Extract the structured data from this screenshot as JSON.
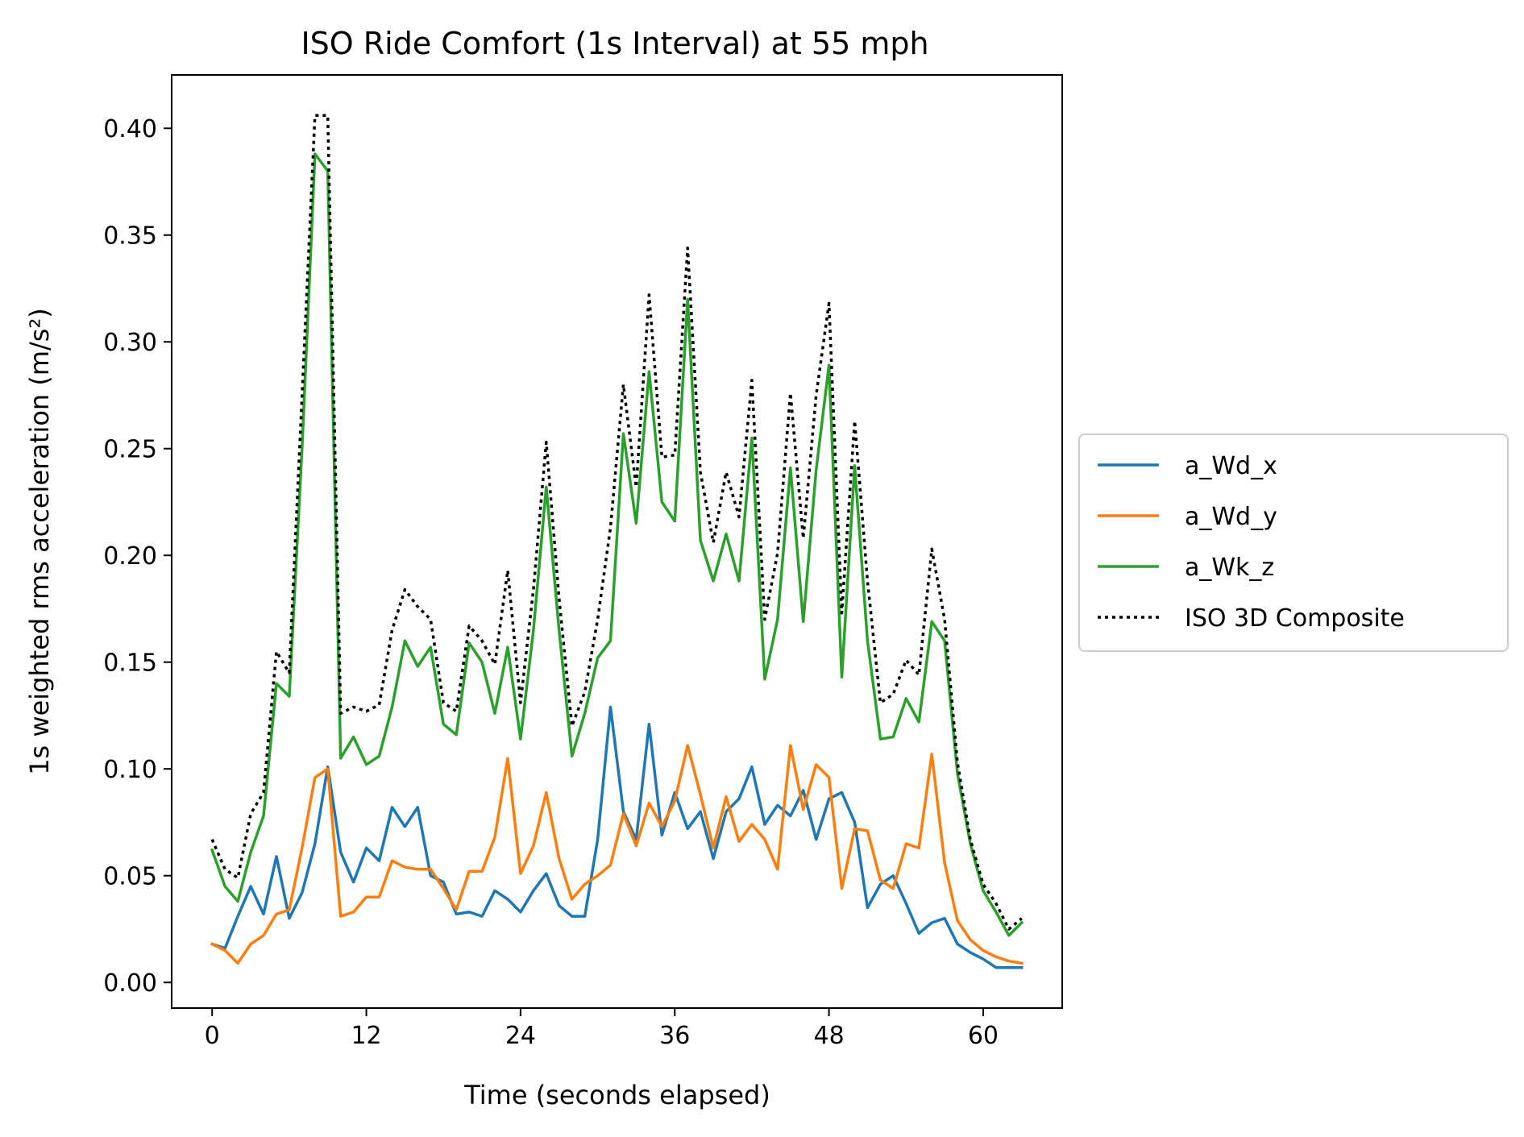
{
  "chart_data": {
    "type": "line",
    "title": "ISO Ride Comfort (1s Interval) at 55 mph",
    "xlabel": "Time (seconds elapsed)",
    "ylabel": "1s weighted rms acceleration (m/s²)",
    "xlim": [
      -3.15,
      66.15
    ],
    "ylim": [
      -0.012,
      0.425
    ],
    "xticks": [
      0,
      12,
      24,
      36,
      48,
      60
    ],
    "xtick_labels": [
      "0",
      "12",
      "24",
      "36",
      "48",
      "60"
    ],
    "yticks": [
      0.0,
      0.05,
      0.1,
      0.15,
      0.2,
      0.25,
      0.3,
      0.35,
      0.4
    ],
    "ytick_labels": [
      "0.00",
      "0.05",
      "0.10",
      "0.15",
      "0.20",
      "0.25",
      "0.30",
      "0.35",
      "0.40"
    ],
    "grid": false,
    "legend_placement": "right-center",
    "x": [
      0,
      1,
      2,
      3,
      4,
      5,
      6,
      7,
      8,
      9,
      10,
      11,
      12,
      13,
      14,
      15,
      16,
      17,
      18,
      19,
      20,
      21,
      22,
      23,
      24,
      25,
      26,
      27,
      28,
      29,
      30,
      31,
      32,
      33,
      34,
      35,
      36,
      37,
      38,
      39,
      40,
      41,
      42,
      43,
      44,
      45,
      46,
      47,
      48,
      49,
      50,
      51,
      52,
      53,
      54,
      55,
      56,
      57,
      58,
      59,
      60,
      61,
      62,
      63
    ],
    "series": [
      {
        "name": "a_Wd_x",
        "color": "#1f77b4",
        "style": "solid",
        "values": [
          0.018,
          0.016,
          0.031,
          0.045,
          0.032,
          0.059,
          0.03,
          0.042,
          0.065,
          0.101,
          0.061,
          0.047,
          0.063,
          0.057,
          0.082,
          0.073,
          0.082,
          0.05,
          0.047,
          0.032,
          0.033,
          0.031,
          0.043,
          0.039,
          0.033,
          0.043,
          0.051,
          0.036,
          0.031,
          0.031,
          0.067,
          0.129,
          0.08,
          0.067,
          0.121,
          0.069,
          0.089,
          0.072,
          0.08,
          0.058,
          0.08,
          0.086,
          0.101,
          0.074,
          0.083,
          0.078,
          0.09,
          0.067,
          0.086,
          0.089,
          0.075,
          0.035,
          0.046,
          0.05,
          0.037,
          0.023,
          0.028,
          0.03,
          0.018,
          0.014,
          0.011,
          0.007,
          0.007,
          0.007
        ]
      },
      {
        "name": "a_Wd_y",
        "color": "#ff7f0e",
        "style": "solid",
        "values": [
          0.018,
          0.015,
          0.009,
          0.018,
          0.022,
          0.032,
          0.034,
          0.063,
          0.096,
          0.1,
          0.031,
          0.033,
          0.04,
          0.04,
          0.057,
          0.054,
          0.053,
          0.053,
          0.044,
          0.034,
          0.052,
          0.052,
          0.068,
          0.105,
          0.051,
          0.064,
          0.089,
          0.058,
          0.039,
          0.046,
          0.05,
          0.055,
          0.079,
          0.064,
          0.084,
          0.073,
          0.085,
          0.111,
          0.088,
          0.063,
          0.087,
          0.066,
          0.074,
          0.067,
          0.053,
          0.111,
          0.081,
          0.102,
          0.096,
          0.044,
          0.072,
          0.071,
          0.048,
          0.044,
          0.065,
          0.063,
          0.107,
          0.056,
          0.029,
          0.02,
          0.015,
          0.012,
          0.01,
          0.009
        ]
      },
      {
        "name": "a_Wk_z",
        "color": "#2ca02c",
        "style": "solid",
        "values": [
          0.062,
          0.045,
          0.038,
          0.061,
          0.078,
          0.14,
          0.134,
          0.25,
          0.388,
          0.38,
          0.105,
          0.115,
          0.102,
          0.106,
          0.129,
          0.16,
          0.148,
          0.157,
          0.121,
          0.116,
          0.159,
          0.15,
          0.126,
          0.157,
          0.114,
          0.165,
          0.232,
          0.165,
          0.106,
          0.126,
          0.152,
          0.16,
          0.257,
          0.215,
          0.286,
          0.225,
          0.216,
          0.32,
          0.207,
          0.188,
          0.21,
          0.188,
          0.255,
          0.142,
          0.17,
          0.241,
          0.169,
          0.24,
          0.289,
          0.143,
          0.242,
          0.16,
          0.114,
          0.115,
          0.133,
          0.122,
          0.169,
          0.16,
          0.098,
          0.065,
          0.043,
          0.033,
          0.022,
          0.028
        ]
      },
      {
        "name": "ISO 3D Composite",
        "color": "#000000",
        "style": "dotted",
        "values": [
          0.067,
          0.053,
          0.049,
          0.079,
          0.089,
          0.155,
          0.145,
          0.275,
          0.406,
          0.406,
          0.126,
          0.129,
          0.127,
          0.13,
          0.165,
          0.184,
          0.176,
          0.17,
          0.131,
          0.127,
          0.167,
          0.16,
          0.149,
          0.193,
          0.131,
          0.184,
          0.253,
          0.18,
          0.12,
          0.136,
          0.17,
          0.213,
          0.28,
          0.232,
          0.322,
          0.246,
          0.247,
          0.344,
          0.239,
          0.206,
          0.239,
          0.218,
          0.282,
          0.17,
          0.201,
          0.276,
          0.208,
          0.275,
          0.318,
          0.173,
          0.263,
          0.188,
          0.131,
          0.135,
          0.151,
          0.144,
          0.203,
          0.17,
          0.103,
          0.067,
          0.046,
          0.037,
          0.025,
          0.03
        ]
      }
    ]
  }
}
